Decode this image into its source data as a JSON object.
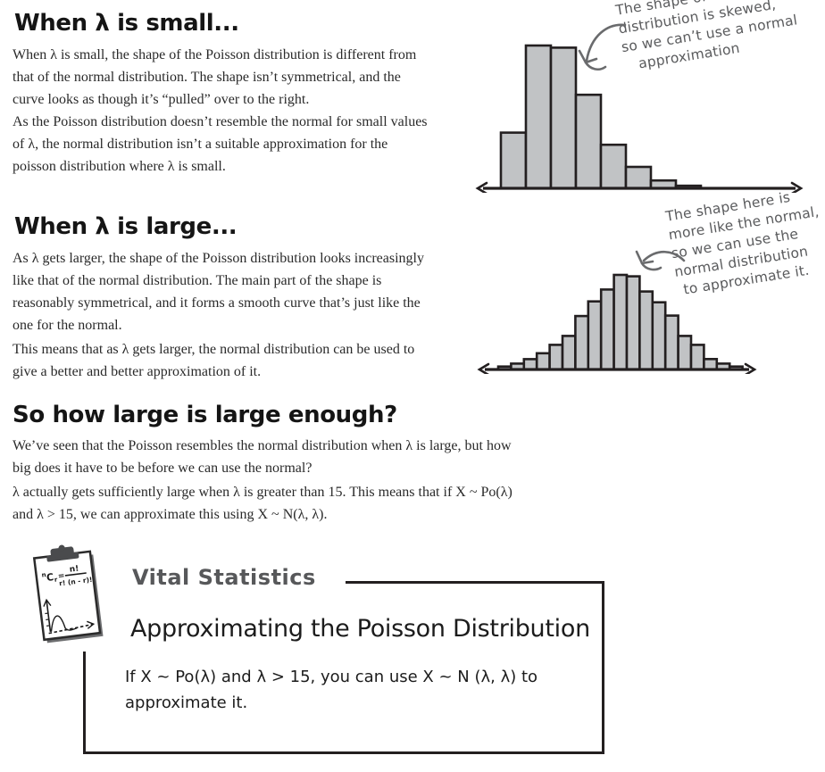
{
  "palette": {
    "ink": "#231f20",
    "body_text": "#2a2a2a",
    "annotation_gray": "#5a5b5d",
    "label_gray": "#57585a",
    "bar_fill": "#c1c3c5",
    "page_bg": "#ffffff"
  },
  "sections": {
    "small": {
      "heading": "When λ is small...",
      "para1": {
        "lines": [
          "When λ is small, the shape of the Poisson distribution is different from",
          "that of the normal distribution. The shape isn’t symmetrical, and the",
          "curve looks as though it’s “pulled” over to the right."
        ]
      },
      "para2": {
        "lines": [
          "As the Poisson distribution doesn’t resemble the normal for small values",
          "of λ, the normal distribution isn’t a suitable approximation for the",
          "poisson distribution where λ is small."
        ]
      }
    },
    "large": {
      "heading": "When λ is large...",
      "para1": {
        "lines": [
          "As λ gets larger, the shape of the Poisson distribution looks increasingly",
          "like that of the normal distribution. The main part of the shape is",
          "reasonably symmetrical, and it forms a smooth curve that’s just like the",
          "one for the normal."
        ]
      },
      "para2": {
        "lines": [
          "This means that as λ gets larger, the normal distribution can be used to",
          "give a better and better approximation of it."
        ]
      }
    },
    "how_large": {
      "heading": "So how large is large enough?",
      "para1": {
        "lines": [
          "We’ve seen that the Poisson resembles the normal distribution when λ is large, but how",
          "big does it have to be before we can use the normal?"
        ]
      },
      "para2": {
        "lines": [
          "λ actually gets sufficiently large when λ is greater than 15. This means that if X ~ Po(λ)",
          "and λ > 15, we can approximate this using X ~ N(λ, λ)."
        ]
      }
    }
  },
  "annotations": {
    "skewed": {
      "lines": [
        "The shape of the",
        "distribution is skewed,",
        "so we can’t use a normal",
        "approximation"
      ]
    },
    "normal_like": {
      "lines": [
        "The shape here is",
        "more like the normal,",
        "so we can use the",
        "normal distribution",
        "to approximate it."
      ]
    }
  },
  "vital": {
    "label": "Vital Statistics",
    "heading": "Approximating the Poisson Distribution",
    "body": {
      "lines": [
        "If X ~ Po(λ) and λ > 15, you can use X ~ N (λ, λ) to",
        "approximate it."
      ]
    },
    "clipboard": {
      "sup_n": "n",
      "C": "C",
      "sub_r": "r",
      "equals": "=",
      "numerator": "n!",
      "denominator": "r! (n - r)!"
    }
  },
  "chart_data": [
    {
      "id": "poisson-small",
      "type": "bar",
      "title": "Poisson distribution when λ is small (right-skewed histogram)",
      "categories": [
        "1",
        "2",
        "3",
        "4",
        "5",
        "6",
        "7",
        "8"
      ],
      "values": [
        0.39,
        1.0,
        0.985,
        0.655,
        0.305,
        0.15,
        0.055,
        0.018
      ],
      "xlabel": "",
      "ylabel": "",
      "axis_style": "double-arrow horizontal axis, no ticks, no gridlines"
    },
    {
      "id": "poisson-large",
      "type": "bar",
      "title": "Poisson distribution when λ is large (bell-shaped histogram)",
      "categories": [
        "1",
        "2",
        "3",
        "4",
        "5",
        "6",
        "7",
        "8",
        "9",
        "10",
        "11",
        "12",
        "13",
        "14",
        "15",
        "16",
        "17",
        "18",
        "19"
      ],
      "values": [
        0.031,
        0.062,
        0.109,
        0.172,
        0.26,
        0.355,
        0.565,
        0.72,
        0.845,
        1.0,
        0.985,
        0.825,
        0.71,
        0.57,
        0.355,
        0.26,
        0.11,
        0.062,
        0.031
      ],
      "xlabel": "",
      "ylabel": "",
      "axis_style": "double-arrow horizontal axis, no ticks, no gridlines"
    }
  ]
}
